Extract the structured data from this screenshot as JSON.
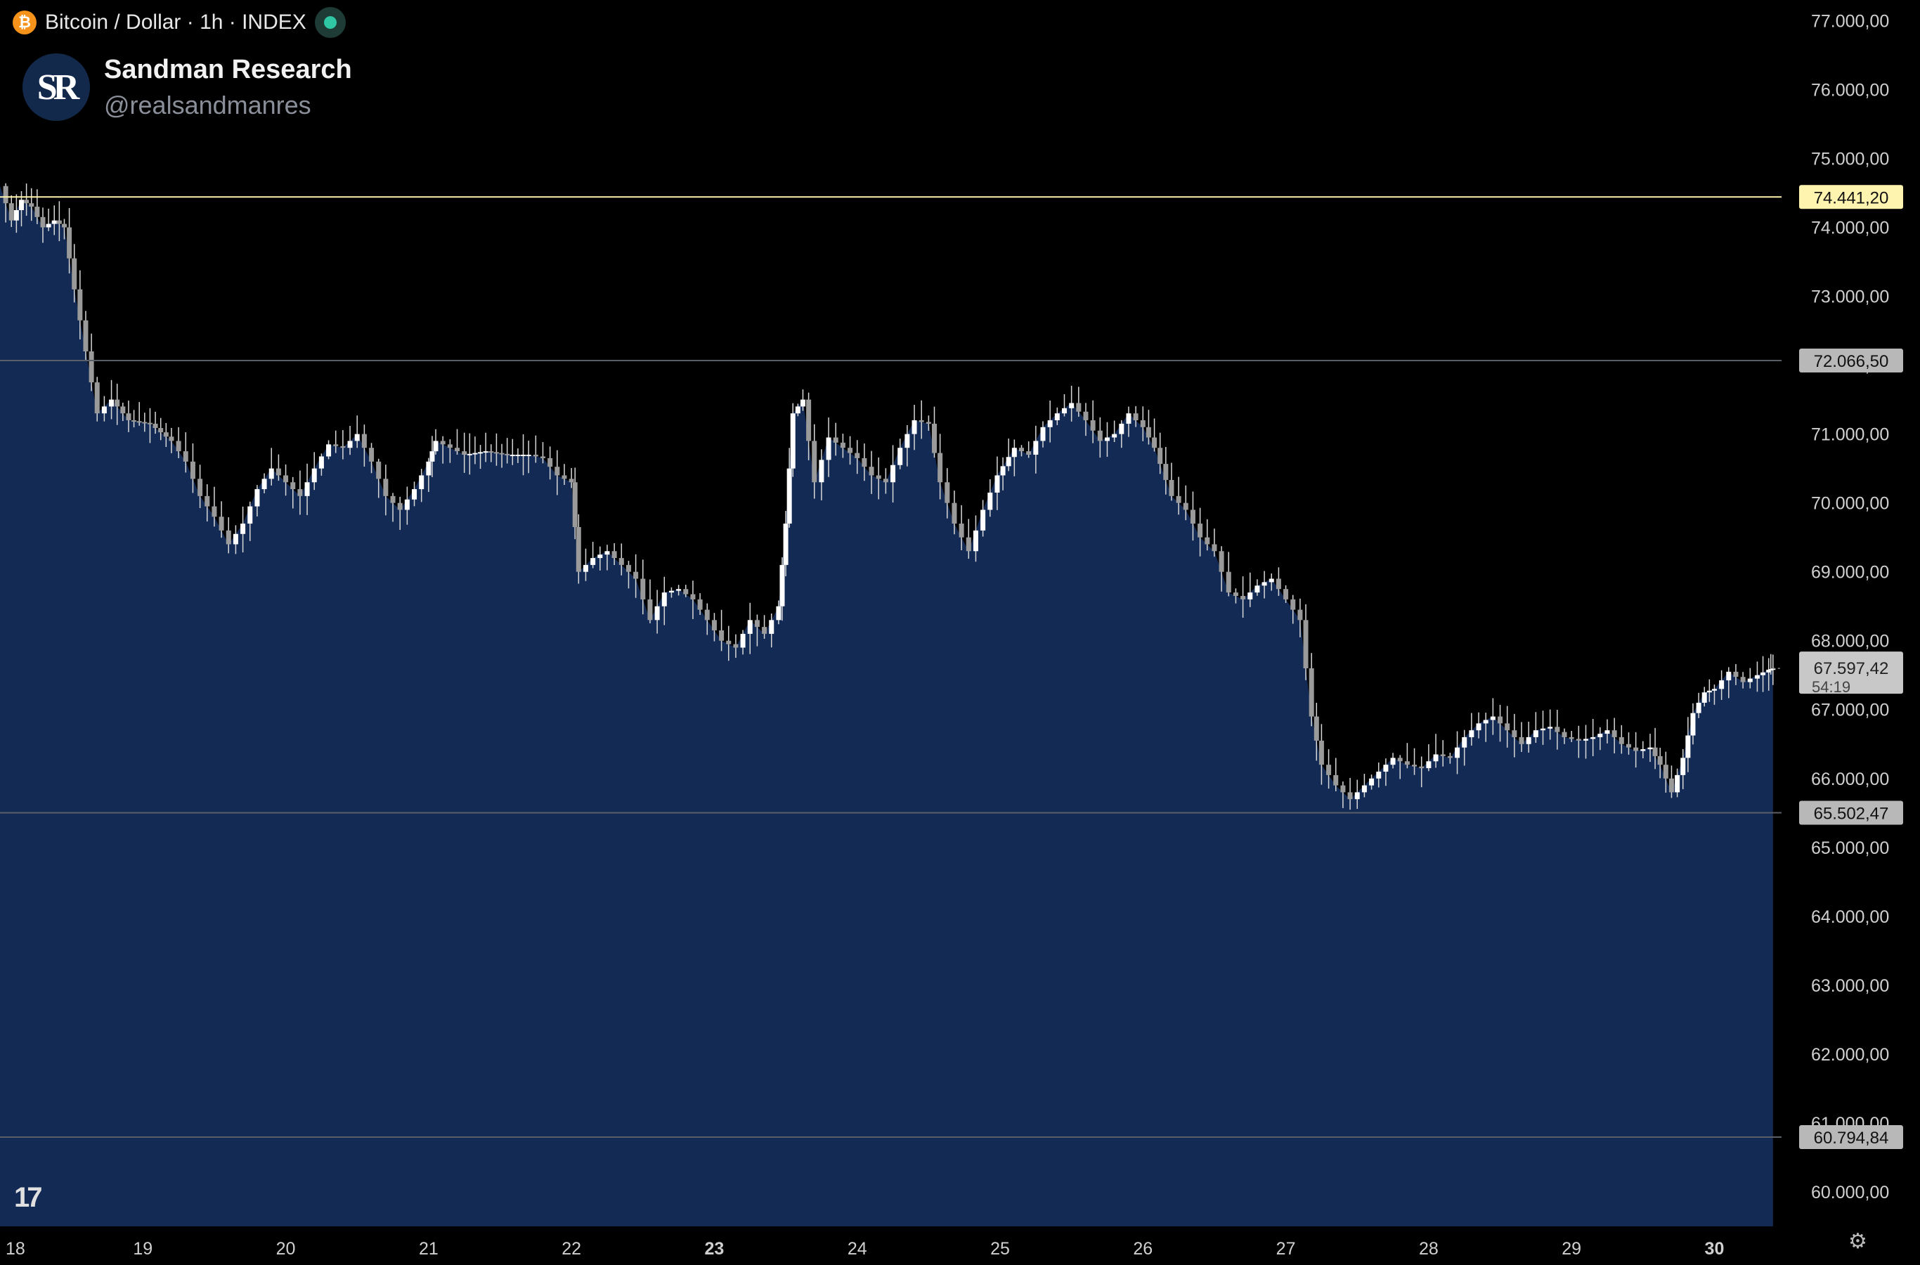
{
  "header": {
    "symbol": "Bitcoin / Dollar · 1h · INDEX",
    "coin_glyph": "₿",
    "live_indicator": "live-dot"
  },
  "brand": {
    "logo_text": "SR",
    "name": "Sandman Research",
    "handle": "@realsandmanres"
  },
  "footer": {
    "tradingview_logo": "17",
    "settings_icon": "gear-icon"
  },
  "colors": {
    "background": "#000000",
    "area_fill": "#132a55",
    "candle": "#ffffff",
    "resistance_line": "#fff3b0",
    "level_line": "#5a5e66",
    "label_gray": "#b8b8b8"
  },
  "chart_data": {
    "type": "candlestick-area",
    "title": "Bitcoin / Dollar · 1h · INDEX",
    "x_ticks": [
      {
        "label": "18",
        "day": 18,
        "bold": false
      },
      {
        "label": "19",
        "day": 19,
        "bold": false
      },
      {
        "label": "20",
        "day": 20,
        "bold": false
      },
      {
        "label": "21",
        "day": 21,
        "bold": false
      },
      {
        "label": "22",
        "day": 22,
        "bold": false
      },
      {
        "label": "23",
        "day": 23,
        "bold": true
      },
      {
        "label": "24",
        "day": 24,
        "bold": false
      },
      {
        "label": "25",
        "day": 25,
        "bold": false
      },
      {
        "label": "26",
        "day": 26,
        "bold": false
      },
      {
        "label": "27",
        "day": 27,
        "bold": false
      },
      {
        "label": "28",
        "day": 28,
        "bold": false
      },
      {
        "label": "29",
        "day": 29,
        "bold": false
      },
      {
        "label": "30",
        "day": 30,
        "bold": true
      }
    ],
    "xlim": [
      18.0,
      30.47
    ],
    "ylim": [
      59500,
      77300
    ],
    "y_ticks": [
      {
        "value": 77000,
        "label": "77.000,00"
      },
      {
        "value": 76000,
        "label": "76.000,00"
      },
      {
        "value": 75000,
        "label": "75.000,00"
      },
      {
        "value": 74000,
        "label": "74.000,00"
      },
      {
        "value": 73000,
        "label": "73.000,00"
      },
      {
        "value": 72000,
        "label": "72.000,00"
      },
      {
        "value": 71000,
        "label": "71.000,00"
      },
      {
        "value": 70000,
        "label": "70.000,00"
      },
      {
        "value": 69000,
        "label": "69.000,00"
      },
      {
        "value": 68000,
        "label": "68.000,00"
      },
      {
        "value": 67000,
        "label": "67.000,00"
      },
      {
        "value": 66000,
        "label": "66.000,00"
      },
      {
        "value": 65000,
        "label": "65.000,00"
      },
      {
        "value": 64000,
        "label": "64.000,00"
      },
      {
        "value": 63000,
        "label": "63.000,00"
      },
      {
        "value": 62000,
        "label": "62.000,00"
      },
      {
        "value": 61000,
        "label": "61.000,00"
      },
      {
        "value": 60000,
        "label": "60.000,00"
      }
    ],
    "horizontal_levels": [
      {
        "value": 74441.2,
        "label": "74.441,20",
        "style": "resistance"
      },
      {
        "value": 72066.5,
        "label": "72.066,50",
        "style": "level"
      },
      {
        "value": 65502.47,
        "label": "65.502,47",
        "style": "level"
      },
      {
        "value": 60794.84,
        "label": "60.794,84",
        "style": "level"
      }
    ],
    "current_price": {
      "value": 67597.42,
      "label": "67.597,42",
      "countdown": "54:19"
    },
    "price_path": [
      [
        18.0,
        74600
      ],
      [
        18.08,
        74100
      ],
      [
        18.15,
        74400
      ],
      [
        18.22,
        74300
      ],
      [
        18.3,
        74000
      ],
      [
        18.38,
        74100
      ],
      [
        18.45,
        74000
      ],
      [
        18.52,
        73100
      ],
      [
        18.6,
        72200
      ],
      [
        18.68,
        71300
      ],
      [
        18.78,
        71500
      ],
      [
        18.9,
        71200
      ],
      [
        19.05,
        71150
      ],
      [
        19.2,
        70900
      ],
      [
        19.3,
        70600
      ],
      [
        19.4,
        70100
      ],
      [
        19.5,
        69800
      ],
      [
        19.6,
        69400
      ],
      [
        19.7,
        69700
      ],
      [
        19.8,
        70200
      ],
      [
        19.9,
        70500
      ],
      [
        20.0,
        70300
      ],
      [
        20.1,
        70100
      ],
      [
        20.2,
        70500
      ],
      [
        20.3,
        70850
      ],
      [
        20.4,
        70800
      ],
      [
        20.5,
        71000
      ],
      [
        20.6,
        70600
      ],
      [
        20.7,
        70100
      ],
      [
        20.8,
        69900
      ],
      [
        20.9,
        70200
      ],
      [
        21.0,
        70600
      ],
      [
        21.05,
        70900
      ],
      [
        21.15,
        70800
      ],
      [
        21.25,
        70700
      ],
      [
        21.4,
        70750
      ],
      [
        21.55,
        70700
      ],
      [
        21.7,
        70700
      ],
      [
        21.8,
        70650
      ],
      [
        21.9,
        70400
      ],
      [
        22.0,
        70300
      ],
      [
        22.05,
        69000
      ],
      [
        22.15,
        69200
      ],
      [
        22.25,
        69300
      ],
      [
        22.35,
        69100
      ],
      [
        22.45,
        68900
      ],
      [
        22.55,
        68300
      ],
      [
        22.65,
        68700
      ],
      [
        22.75,
        68750
      ],
      [
        22.85,
        68600
      ],
      [
        22.95,
        68300
      ],
      [
        23.05,
        68000
      ],
      [
        23.15,
        67900
      ],
      [
        23.25,
        68300
      ],
      [
        23.35,
        68100
      ],
      [
        23.45,
        68500
      ],
      [
        23.5,
        69700
      ],
      [
        23.55,
        71300
      ],
      [
        23.62,
        71500
      ],
      [
        23.7,
        70300
      ],
      [
        23.8,
        70950
      ],
      [
        23.9,
        70800
      ],
      [
        24.0,
        70650
      ],
      [
        24.1,
        70400
      ],
      [
        24.2,
        70300
      ],
      [
        24.3,
        70800
      ],
      [
        24.4,
        71200
      ],
      [
        24.5,
        71150
      ],
      [
        24.58,
        70300
      ],
      [
        24.68,
        69700
      ],
      [
        24.78,
        69300
      ],
      [
        24.88,
        69900
      ],
      [
        24.98,
        70400
      ],
      [
        25.1,
        70800
      ],
      [
        25.2,
        70700
      ],
      [
        25.3,
        71100
      ],
      [
        25.4,
        71300
      ],
      [
        25.5,
        71450
      ],
      [
        25.6,
        71200
      ],
      [
        25.7,
        70900
      ],
      [
        25.8,
        71000
      ],
      [
        25.9,
        71300
      ],
      [
        26.0,
        71100
      ],
      [
        26.08,
        70800
      ],
      [
        26.2,
        70100
      ],
      [
        26.3,
        69900
      ],
      [
        26.4,
        69500
      ],
      [
        26.5,
        69300
      ],
      [
        26.6,
        68700
      ],
      [
        26.7,
        68600
      ],
      [
        26.8,
        68800
      ],
      [
        26.9,
        68900
      ],
      [
        27.0,
        68600
      ],
      [
        27.1,
        68300
      ],
      [
        27.18,
        66900
      ],
      [
        27.25,
        66200
      ],
      [
        27.35,
        65900
      ],
      [
        27.45,
        65700
      ],
      [
        27.55,
        65900
      ],
      [
        27.65,
        66100
      ],
      [
        27.75,
        66300
      ],
      [
        27.85,
        66200
      ],
      [
        27.95,
        66150
      ],
      [
        28.05,
        66350
      ],
      [
        28.15,
        66300
      ],
      [
        28.25,
        66600
      ],
      [
        28.35,
        66800
      ],
      [
        28.45,
        66900
      ],
      [
        28.55,
        66700
      ],
      [
        28.65,
        66500
      ],
      [
        28.75,
        66700
      ],
      [
        28.85,
        66750
      ],
      [
        28.95,
        66600
      ],
      [
        29.05,
        66550
      ],
      [
        29.15,
        66600
      ],
      [
        29.25,
        66700
      ],
      [
        29.35,
        66500
      ],
      [
        29.45,
        66400
      ],
      [
        29.55,
        66450
      ],
      [
        29.62,
        66200
      ],
      [
        29.7,
        65800
      ],
      [
        29.78,
        66300
      ],
      [
        29.85,
        66950
      ],
      [
        29.93,
        67250
      ],
      [
        30.0,
        67300
      ],
      [
        30.1,
        67550
      ],
      [
        30.2,
        67400
      ],
      [
        30.3,
        67500
      ],
      [
        30.38,
        67580
      ],
      [
        30.41,
        67597
      ]
    ]
  }
}
